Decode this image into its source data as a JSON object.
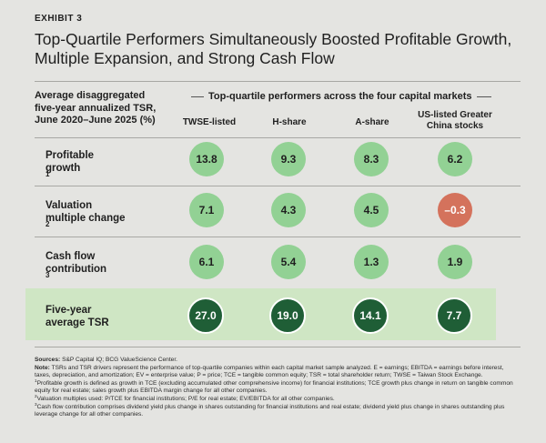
{
  "exhibit_label": "EXHIBIT 3",
  "title_line1": "Top-Quartile Performers Simultaneously Boosted Profitable Growth,",
  "title_line2": "Multiple Expansion, and Strong Cash Flow",
  "row_header": {
    "line1": "Average disaggregated",
    "line2": "five-year annualized TSR,",
    "line3": "June 2020–June 2025 (%)"
  },
  "group_header": "Top-quartile performers across the four capital markets",
  "columns": [
    {
      "line1": "TWSE-listed",
      "line2": ""
    },
    {
      "line1": "H-share",
      "line2": ""
    },
    {
      "line1": "A-share",
      "line2": ""
    },
    {
      "line1": "US-listed Greater",
      "line2": "China stocks"
    }
  ],
  "rows": [
    {
      "line1": "Profitable",
      "line2": "growth",
      "sup": "1",
      "values": [
        "13.8",
        "9.3",
        "8.3",
        "6.2"
      ]
    },
    {
      "line1": "Valuation",
      "line2": "multiple change",
      "sup": "2",
      "values": [
        "7.1",
        "4.3",
        "4.5",
        "–0.3"
      ]
    },
    {
      "line1": "Cash flow",
      "line2": "contribution",
      "sup": "3",
      "values": [
        "6.1",
        "5.4",
        "1.3",
        "1.9"
      ]
    },
    {
      "line1": "Five-year",
      "line2": "average TSR",
      "sup": "",
      "values": [
        "27.0",
        "19.0",
        "14.1",
        "7.7"
      ]
    }
  ],
  "notes": {
    "sources_label": "Sources:",
    "sources_text": "S&P Capital IQ; BCG ValueScience Center.",
    "note_label": "Note:",
    "note_text": "TSRs and TSR drivers represent the performance of top-quartile companies within each capital market sample analyzed. E = earnings; EBITDA = earnings before interest, taxes, depreciation, and amortization; EV = enterprise value; P = price; TCE = tangible common equity; TSR = total shareholder return; TWSE = Taiwan Stock Exchange.",
    "fn1_mark": "1",
    "fn1_text": "Profitable growth is defined as growth in TCE (excluding accumulated other comprehensive income) for financial institutions; TCE growth plus change in return on tangible common equity for real estate; sales growth plus EBITDA margin change for all other companies.",
    "fn2_mark": "2",
    "fn2_text": "Valuation multiples used: P/TCE for financial institutions; P/E for real estate; EV/EBITDA for all other companies.",
    "fn3_mark": "3",
    "fn3_text": "Cash flow contribution comprises dividend yield plus change in shares outstanding for financial institutions and real estate; dividend yield plus change in shares outstanding plus leverage change for all other companies."
  },
  "colors": {
    "positive_bubble": "#92d194",
    "negative_bubble": "#d4725c",
    "total_bubble": "#1f5e36",
    "total_band": "#cfe6c4"
  }
}
